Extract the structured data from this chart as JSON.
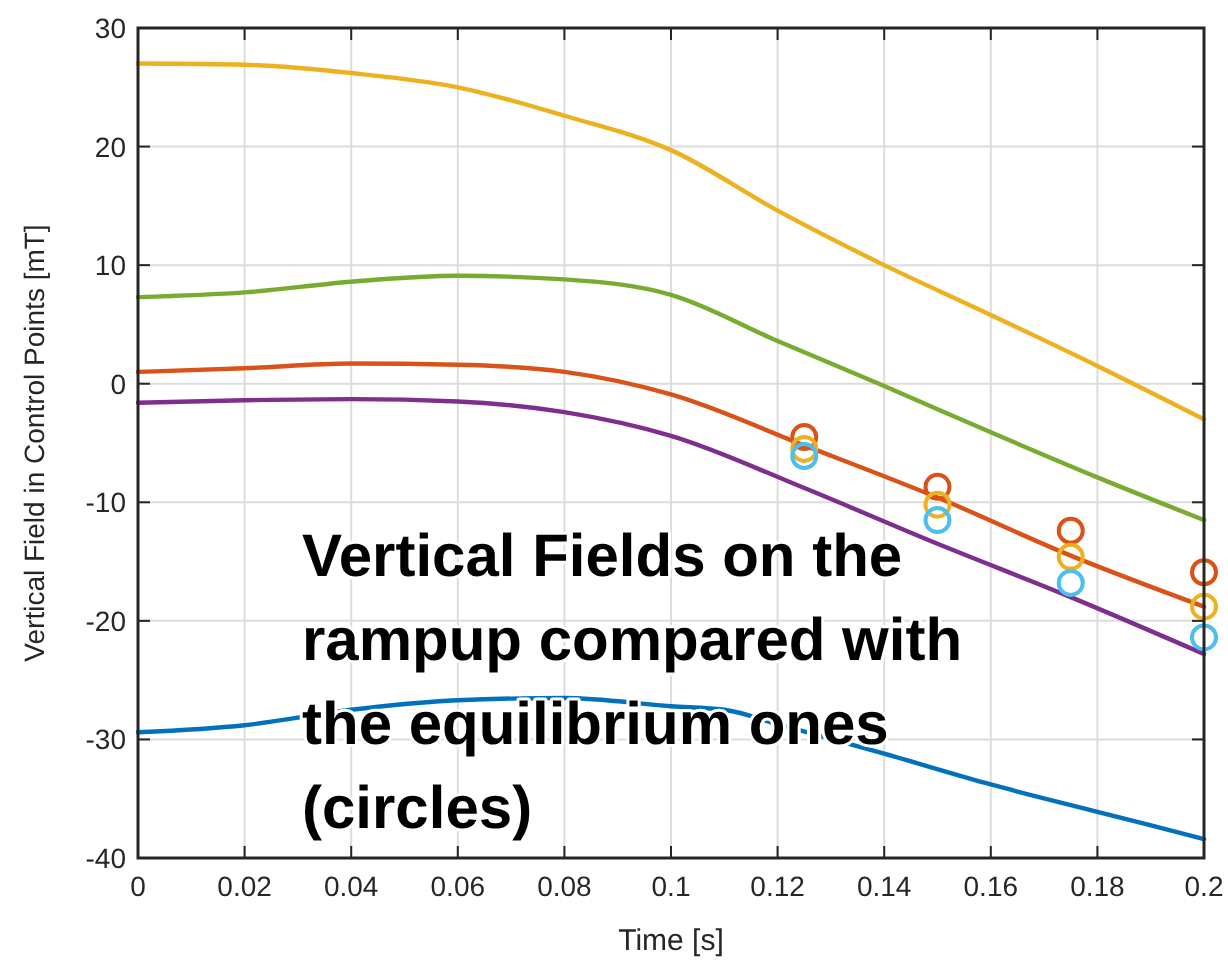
{
  "chart_data": {
    "type": "line",
    "xlabel": "Time [s]",
    "ylabel": "Vertical Field in Control Points [mT]",
    "annotations": [
      "Vertical Fields on the rampup compared with the equilibrium ones (circles)"
    ],
    "xlim": [
      0,
      0.2
    ],
    "ylim": [
      -40,
      30
    ],
    "xticks": [
      0,
      0.02,
      0.04,
      0.06,
      0.08,
      0.1,
      0.12,
      0.14,
      0.16,
      0.18,
      0.2
    ],
    "yticks": [
      -40,
      -30,
      -20,
      -10,
      0,
      10,
      20,
      30
    ],
    "grid": true,
    "line_style": "solid",
    "series": [
      {
        "color": "#edb120",
        "x": [
          0,
          0.02,
          0.04,
          0.06,
          0.08,
          0.1,
          0.12,
          0.14,
          0.16,
          0.18,
          0.2
        ],
        "values": [
          27,
          26.9,
          26.2,
          25,
          22.6,
          19.7,
          14.6,
          10,
          5.8,
          1.5,
          -3
        ]
      },
      {
        "color": "#77ac30",
        "x": [
          0,
          0.02,
          0.04,
          0.06,
          0.08,
          0.1,
          0.12,
          0.14,
          0.16,
          0.18,
          0.2
        ],
        "values": [
          7.3,
          7.7,
          8.6,
          9.1,
          8.8,
          7.5,
          3.6,
          -0.2,
          -4.1,
          -7.9,
          -11.5
        ]
      },
      {
        "color": "#d95319",
        "x": [
          0,
          0.02,
          0.04,
          0.06,
          0.08,
          0.1,
          0.125,
          0.15,
          0.175,
          0.2
        ],
        "values": [
          1,
          1.3,
          1.7,
          1.6,
          1,
          -0.9,
          -5.2,
          -9.6,
          -14.5,
          -18.8
        ]
      },
      {
        "color": "#7e2f8e",
        "x": [
          0,
          0.02,
          0.04,
          0.06,
          0.08,
          0.1,
          0.125,
          0.15,
          0.175,
          0.2
        ],
        "values": [
          -1.6,
          -1.4,
          -1.3,
          -1.5,
          -2.4,
          -4.4,
          -8.8,
          -13.5,
          -18,
          -22.8
        ]
      },
      {
        "color": "#0072bd",
        "x": [
          0,
          0.02,
          0.04,
          0.06,
          0.08,
          0.1,
          0.11,
          0.12,
          0.14,
          0.16,
          0.18,
          0.2
        ],
        "values": [
          -29.4,
          -28.8,
          -27.5,
          -26.7,
          -26.5,
          -27.2,
          -27.5,
          -28.7,
          -31.2,
          -33.8,
          -36.1,
          -38.4
        ]
      },
      {
        "type": "scatter",
        "marker": "circle",
        "color": "#d95319",
        "x": [
          0.125,
          0.15,
          0.175,
          0.2
        ],
        "values": [
          -4.5,
          -8.7,
          -12.4,
          -15.9
        ]
      },
      {
        "type": "scatter",
        "marker": "circle",
        "color": "#edb120",
        "x": [
          0.125,
          0.15,
          0.175,
          0.2
        ],
        "values": [
          -5.5,
          -10.2,
          -14.6,
          -18.8
        ]
      },
      {
        "type": "scatter",
        "marker": "circle",
        "color": "#4dbeee",
        "x": [
          0.125,
          0.15,
          0.175,
          0.2
        ],
        "values": [
          -6.1,
          -11.5,
          -16.8,
          -21.4
        ]
      }
    ]
  }
}
